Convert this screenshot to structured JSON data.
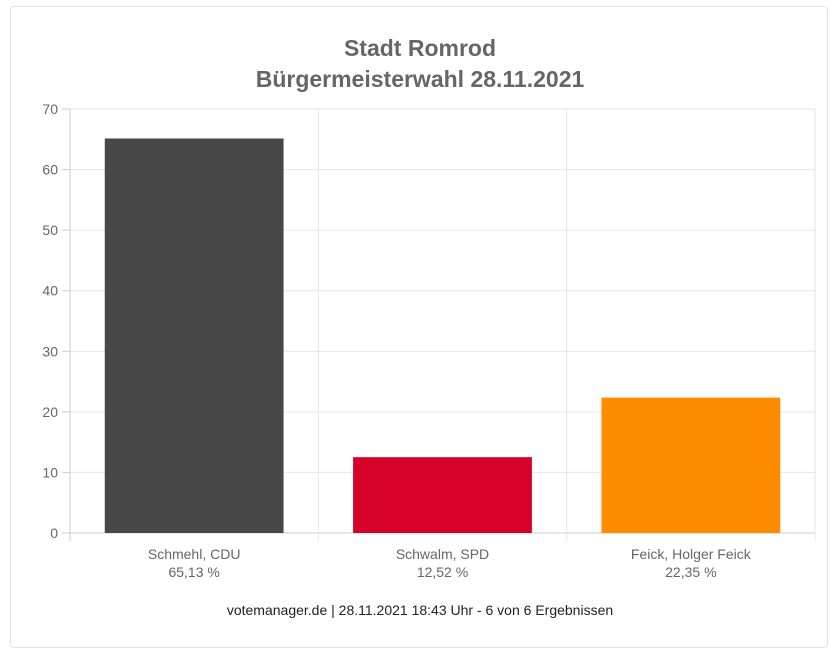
{
  "chart_data": {
    "type": "bar",
    "title": "Stadt Romrod",
    "subtitle": "Bürgermeisterwahl 28.11.2021",
    "categories": [
      "Schmehl, CDU",
      "Schwalm, SPD",
      "Feick, Holger Feick"
    ],
    "values": [
      65.13,
      12.52,
      22.35
    ],
    "value_labels": [
      "65,13 %",
      "12,52 %",
      "22,35 %"
    ],
    "colors": [
      "#474747",
      "#d7002a",
      "#ff8b00"
    ],
    "ylim": [
      0,
      70
    ],
    "yticks": [
      "0",
      "10",
      "20",
      "30",
      "40",
      "50",
      "60",
      "70"
    ],
    "xlabel": "",
    "ylabel": "",
    "grid": true
  },
  "footer": "votemanager.de | 28.11.2021 18:43 Uhr - 6 von 6 Ergebnissen"
}
